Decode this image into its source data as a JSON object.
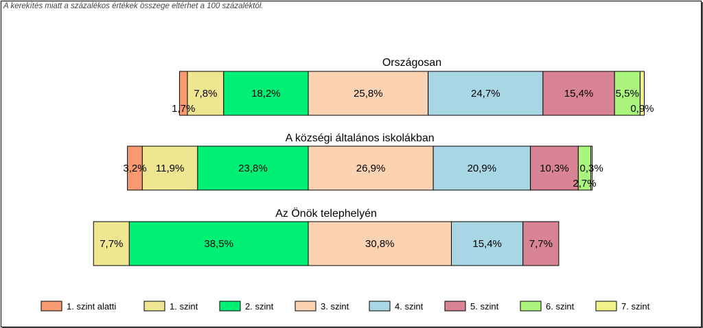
{
  "note": "A kerekítés miatt a  százalékos értékek összege eltérhet a 100 százaléktól.",
  "chart_data": {
    "type": "bar",
    "orientation": "horizontal",
    "stacked": true,
    "percent": true,
    "legend_position": "bottom",
    "categories": [
      "1. szint alatti",
      "1. szint",
      "2. szint",
      "3. szint",
      "4. szint",
      "5. szint",
      "6. szint",
      "7. szint"
    ],
    "colors": [
      "#F79A72",
      "#EEE691",
      "#00F076",
      "#FBD3B3",
      "#A9D6E5",
      "#D98494",
      "#ABF57D",
      "#F2F28A"
    ],
    "groups": [
      {
        "title": "Országosan",
        "values": [
          1.7,
          7.8,
          18.2,
          25.8,
          24.7,
          15.4,
          5.5,
          0.9
        ],
        "labels": [
          "1,7%",
          "7,8%",
          "18,2%",
          "25,8%",
          "24,7%",
          "15,4%",
          "5,5%",
          "0,9%"
        ]
      },
      {
        "title": "A községi általános iskolákban",
        "values": [
          3.2,
          11.9,
          23.8,
          26.9,
          20.9,
          10.3,
          2.7,
          0.3
        ],
        "labels": [
          "3,2%",
          "11,9%",
          "23,8%",
          "26,9%",
          "20,9%",
          "10,3%",
          "2,7%",
          "0,3%"
        ]
      },
      {
        "title": "Az Önök telephelyén",
        "values": [
          0,
          7.7,
          38.5,
          30.8,
          15.4,
          7.7,
          0,
          0
        ],
        "labels": [
          "",
          "7,7%",
          "38,5%",
          "30,8%",
          "15,4%",
          "7,7%",
          "",
          ""
        ]
      }
    ]
  }
}
